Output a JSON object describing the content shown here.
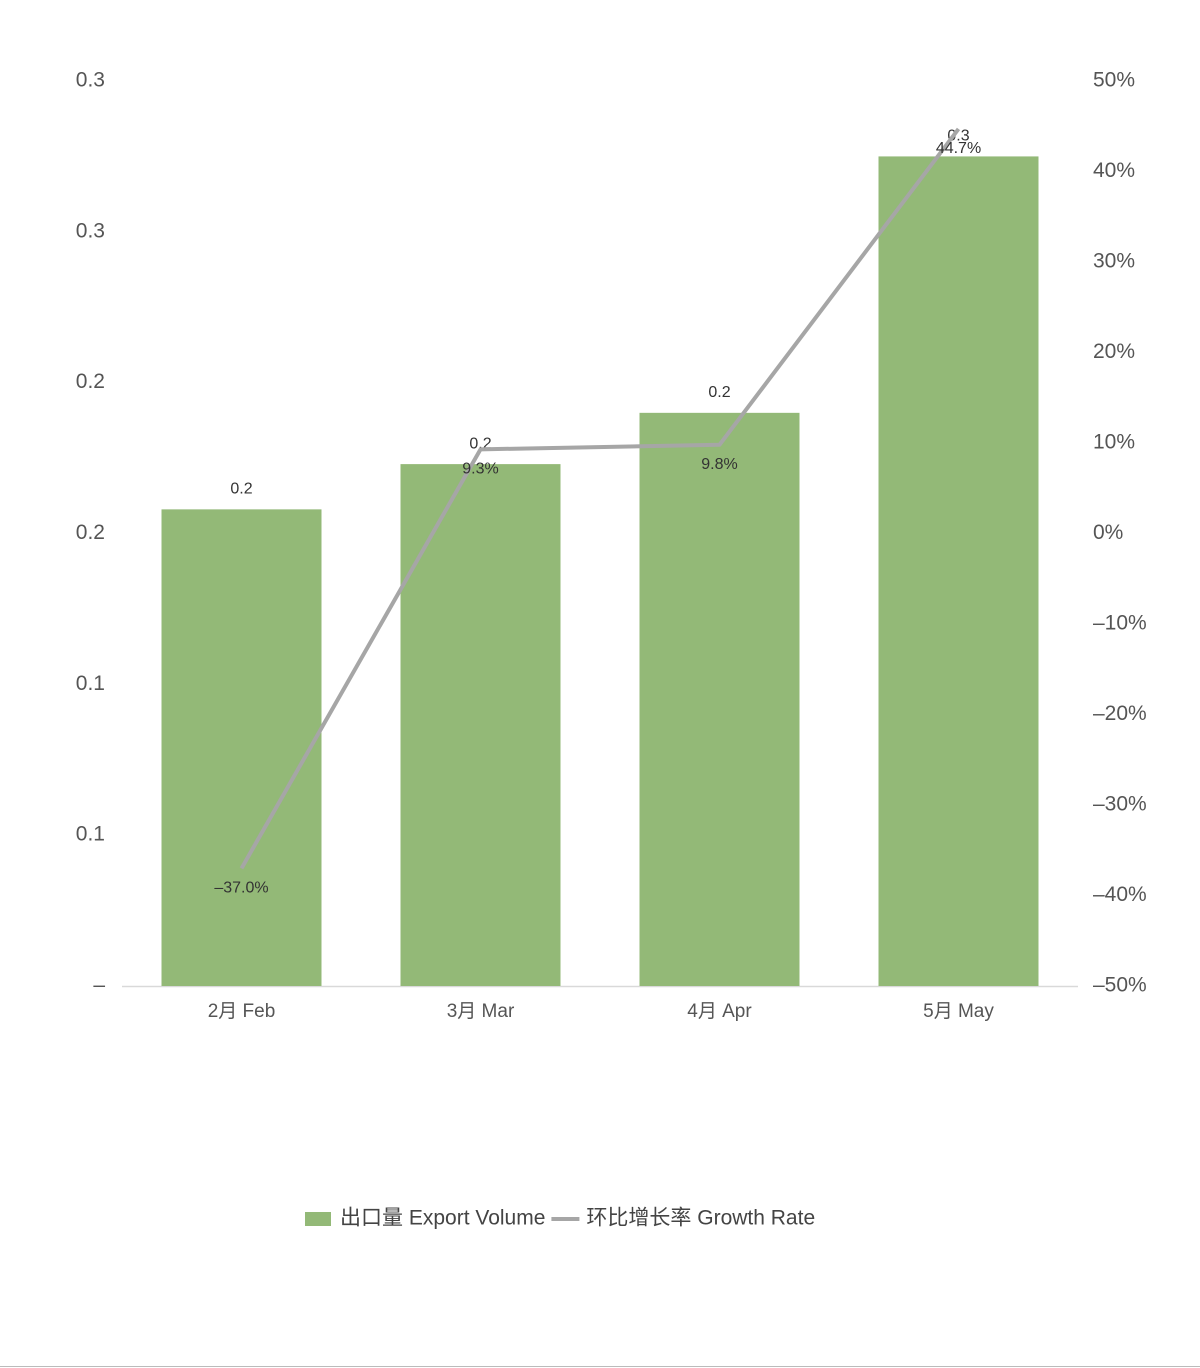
{
  "chart_data": {
    "type": "bar-line",
    "categories": [
      "2月 Feb",
      "3月 Mar",
      "4月 Apr",
      "5月 May"
    ],
    "series": [
      {
        "name": "出口量 Export Volume",
        "type": "bar",
        "color": "#93b977",
        "values": [
          0.158,
          0.173,
          0.19,
          0.275
        ],
        "value_labels": [
          "0.2",
          "0.2",
          "0.2",
          "0.3"
        ]
      },
      {
        "name": "环比增长率 Growth Rate",
        "type": "line",
        "axis": "y2",
        "color": "#a6a6a6",
        "values": [
          -37.0,
          9.3,
          9.8,
          44.7
        ],
        "value_labels": [
          "–37.0%",
          "9.3%",
          "9.8%",
          "44.7%"
        ]
      }
    ],
    "ylim": [
      0,
      0.3
    ],
    "yticks": [
      {
        "value": 0,
        "label": "–"
      },
      {
        "value": 0.05,
        "label": "0.1"
      },
      {
        "value": 0.1,
        "label": "0.1"
      },
      {
        "value": 0.15,
        "label": "0.2"
      },
      {
        "value": 0.2,
        "label": "0.2"
      },
      {
        "value": 0.25,
        "label": "0.3"
      },
      {
        "value": 0.3,
        "label": "0.3"
      }
    ],
    "y2lim": [
      -50,
      50
    ],
    "y2ticks": [
      {
        "value": -50,
        "label": "–50%"
      },
      {
        "value": -40,
        "label": "–40%"
      },
      {
        "value": -30,
        "label": "–30%"
      },
      {
        "value": -20,
        "label": "–20%"
      },
      {
        "value": -10,
        "label": "–10%"
      },
      {
        "value": 0,
        "label": "0%"
      },
      {
        "value": 10,
        "label": "10%"
      },
      {
        "value": 20,
        "label": "20%"
      },
      {
        "value": 30,
        "label": "30%"
      },
      {
        "value": 40,
        "label": "40%"
      },
      {
        "value": 50,
        "label": "50%"
      }
    ],
    "grid": false,
    "legend": "bottom"
  }
}
